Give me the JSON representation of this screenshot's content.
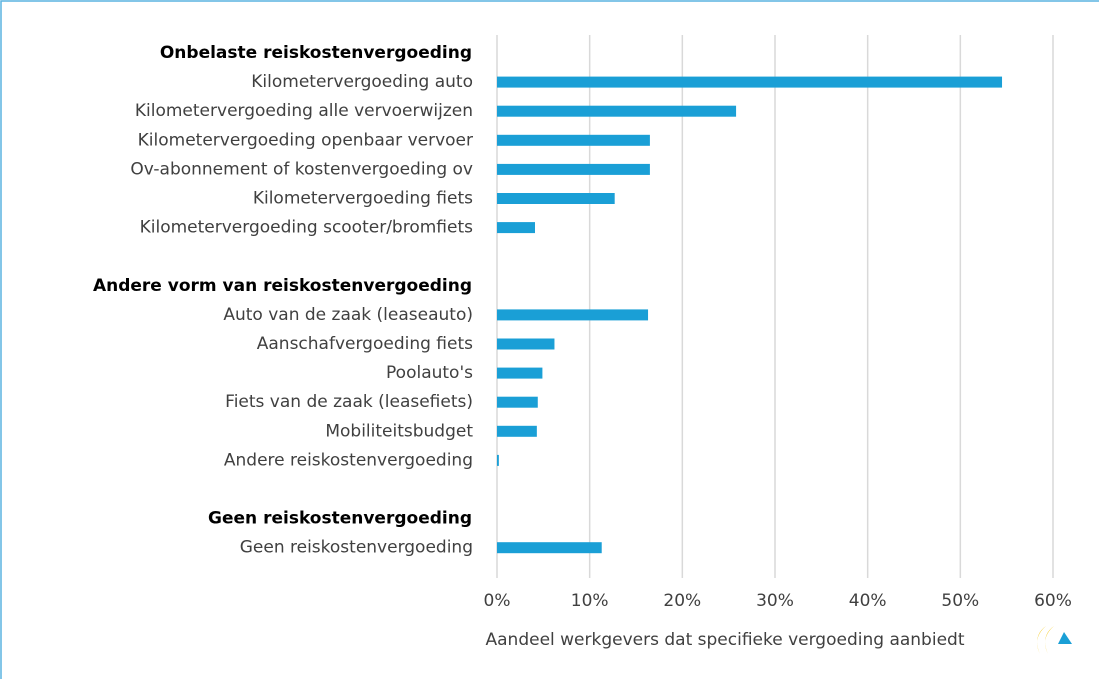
{
  "chart_data": {
    "type": "bar",
    "orientation": "horizontal",
    "color": "#1a9fd6",
    "x_label": "Aandeel werkgevers dat specifieke vergoeding aanbiedt",
    "xlim": [
      0,
      60
    ],
    "xticks": [
      {
        "value": 0,
        "label": "0%"
      },
      {
        "value": 10,
        "label": "10%"
      },
      {
        "value": 20,
        "label": "20%"
      },
      {
        "value": 30,
        "label": "30%"
      },
      {
        "value": 40,
        "label": "40%"
      },
      {
        "value": 50,
        "label": "50%"
      },
      {
        "value": 60,
        "label": "60%"
      }
    ],
    "grid": true,
    "groups": [
      {
        "name": "Onbelaste reiskostenvergoeding",
        "categories": [
          "Kilometervergoeding auto",
          "Kilometervergoeding alle vervoerwijzen",
          "Kilometervergoeding openbaar vervoer",
          "Ov-abonnement of kostenvergoeding ov",
          "Kilometervergoeding fiets",
          "Kilometervergoeding scooter/bromfiets"
        ],
        "values": [
          54.5,
          25.8,
          16.5,
          16.5,
          12.7,
          4.1
        ]
      },
      {
        "name": "Andere vorm van  reiskostenvergoeding",
        "categories": [
          "Auto van de zaak (leaseauto)",
          "Aanschafvergoeding fiets",
          "Poolauto's",
          "Fiets van de zaak (leasefiets)",
          "Mobiliteitsbudget",
          "Andere reiskostenvergoeding"
        ],
        "values": [
          16.3,
          6.2,
          4.9,
          4.4,
          4.3,
          0.2
        ]
      },
      {
        "name": "Geen reiskostenvergoeding",
        "categories": [
          "Geen reiskostenvergoeding"
        ],
        "values": [
          11.3
        ]
      }
    ]
  }
}
